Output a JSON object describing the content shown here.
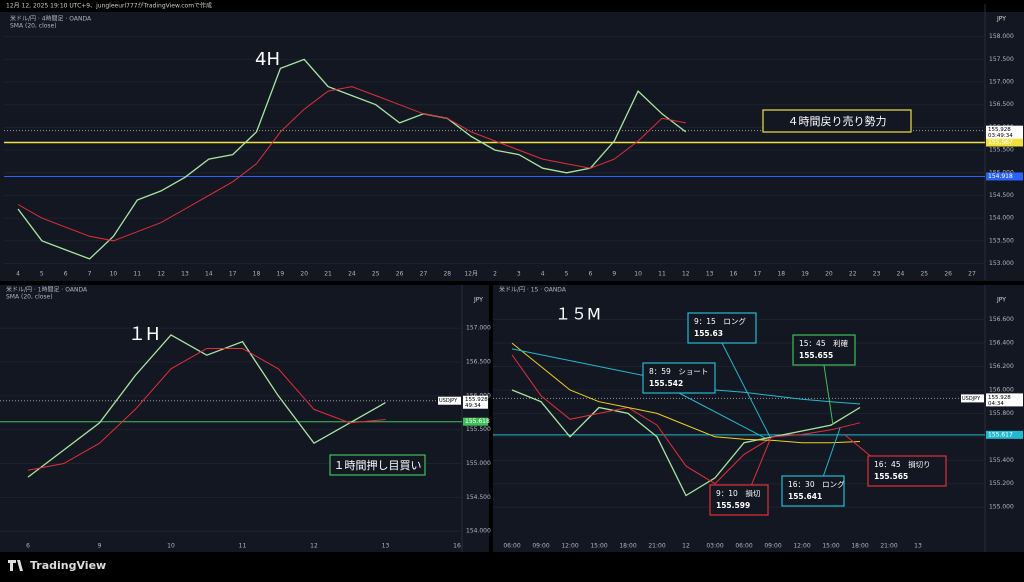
{
  "header": "12月 12, 2025 19:10 UTC+9、jungleeurl777がTradingView.comで作成",
  "footer": "TradingView",
  "chart_data": [
    {
      "type": "line",
      "title": "米ドル/円 · 4時間足 · OANDA",
      "subtitle": "SMA (20, close)",
      "currency": "JPY",
      "label": "4H",
      "categories": [
        "4",
        "5",
        "6",
        "7",
        "10",
        "11",
        "12",
        "13",
        "14",
        "17",
        "18",
        "19",
        "20",
        "21",
        "24",
        "25",
        "26",
        "27",
        "28",
        "12月",
        "2",
        "3",
        "4",
        "5",
        "6",
        "9",
        "10",
        "11",
        "12",
        "13",
        "16",
        "17",
        "18",
        "19",
        "20",
        "22",
        "23",
        "24",
        "25",
        "26",
        "27"
      ],
      "series": [
        {
          "color": "#a8e6a0",
          "values": [
            154.2,
            153.5,
            153.3,
            153.1,
            153.6,
            154.4,
            154.6,
            154.9,
            155.3,
            155.4,
            155.9,
            157.3,
            157.5,
            156.9,
            156.7,
            156.5,
            156.1,
            156.3,
            156.2,
            155.8,
            155.5,
            155.4,
            155.1,
            155.0,
            155.1,
            155.7,
            156.8,
            156.3,
            155.9,
            null,
            null,
            null,
            null,
            null,
            null,
            null,
            null,
            null,
            null,
            null,
            null
          ]
        },
        {
          "color": "#e0303a",
          "values": [
            154.3,
            154.0,
            153.8,
            153.6,
            153.5,
            153.7,
            153.9,
            154.2,
            154.5,
            154.8,
            155.2,
            155.9,
            156.4,
            156.8,
            156.9,
            156.7,
            156.5,
            156.3,
            156.2,
            155.9,
            155.7,
            155.5,
            155.3,
            155.2,
            155.1,
            155.3,
            155.7,
            156.2,
            156.1,
            null,
            null,
            null,
            null,
            null,
            null,
            null,
            null,
            null,
            null,
            null,
            null
          ]
        }
      ],
      "ylim": [
        152.9,
        158.5
      ],
      "yticks": [
        {
          "value": 153,
          "label": "153.000"
        },
        {
          "value": 153.5,
          "label": "153.500"
        },
        {
          "value": 154,
          "label": "154.000"
        },
        {
          "value": 154.5,
          "label": "154.500"
        },
        {
          "value": 155,
          "label": "155.000"
        },
        {
          "value": 155.5,
          "label": "155.500"
        },
        {
          "value": 156,
          "label": "156.000"
        },
        {
          "value": 156.5,
          "label": "156.500"
        },
        {
          "value": 157,
          "label": "157.000"
        },
        {
          "value": 157.5,
          "label": "157.500"
        },
        {
          "value": 158,
          "label": "158.000"
        }
      ],
      "levels": [
        {
          "value": 155.667,
          "color": "#f0e040"
        },
        {
          "value": 154.918,
          "color": "#2962ff"
        }
      ],
      "price": {
        "value": 155.928,
        "timer": "03:49:34"
      },
      "annotations": [
        {
          "text": "４時間戻り売り勢力",
          "color": "#f0e040"
        }
      ]
    },
    {
      "type": "line",
      "title": "米ドル/円 · 1時間足 · OANDA",
      "subtitle": "SMA (20, close)",
      "currency": "JPY",
      "label": "１H",
      "categories": [
        "6",
        null,
        "9",
        null,
        "10",
        null,
        "11",
        null,
        "12",
        null,
        "13",
        null,
        "16"
      ],
      "series": [
        {
          "color": "#a8e6a0",
          "values": [
            154.8,
            155.2,
            155.6,
            156.3,
            156.9,
            156.6,
            156.8,
            156.0,
            155.3,
            155.6,
            155.9,
            null,
            null
          ]
        },
        {
          "color": "#e0303a",
          "values": [
            154.9,
            155.0,
            155.3,
            155.8,
            156.4,
            156.7,
            156.7,
            156.4,
            155.8,
            155.6,
            155.65,
            null,
            null
          ]
        }
      ],
      "ylim": [
        153.87,
        157.49
      ],
      "yticks": [
        {
          "value": 154,
          "label": "154.000"
        },
        {
          "value": 154.5,
          "label": "154.500"
        },
        {
          "value": 155,
          "label": "155.000"
        },
        {
          "value": 155.5,
          "label": "155.500"
        },
        {
          "value": 156,
          "label": "156.000"
        },
        {
          "value": 156.5,
          "label": "156.500"
        },
        {
          "value": 157,
          "label": "157.000"
        }
      ],
      "levels": [
        {
          "value": 155.618,
          "color": "#3fbf5a"
        }
      ],
      "price": {
        "value": 155.928,
        "timer": "49:34",
        "symbol": "USDJPY"
      },
      "annotations": [
        {
          "text": "１時間押し目買い",
          "color": "#3fbf5a"
        }
      ]
    },
    {
      "type": "line",
      "title": "米ドル/円 · 15 · OANDA",
      "currency": "JPY",
      "label": "１５M",
      "categories": [
        "06:00",
        "09:00",
        "12:00",
        "15:00",
        "18:00",
        "21:00",
        "12",
        "03:00",
        "06:00",
        "09:00",
        "12:00",
        "15:00",
        "18:00",
        "21:00",
        "13"
      ],
      "series": [
        {
          "color": "#a8e6a0",
          "values": [
            156.0,
            155.9,
            155.6,
            155.85,
            155.8,
            155.6,
            155.1,
            155.25,
            155.55,
            155.6,
            155.65,
            155.7,
            155.85,
            null,
            null
          ]
        },
        {
          "color": "#e0303a",
          "values": [
            156.3,
            155.95,
            155.75,
            155.8,
            155.85,
            155.7,
            155.35,
            155.2,
            155.45,
            155.6,
            155.62,
            155.66,
            155.72,
            null,
            null
          ]
        },
        {
          "color": "#f0d020",
          "values": [
            156.4,
            156.2,
            156.0,
            155.9,
            155.85,
            155.8,
            155.7,
            155.6,
            155.58,
            155.57,
            155.55,
            155.55,
            155.56,
            null,
            null
          ]
        },
        {
          "color": "#22b8cf",
          "values": [
            156.35,
            156.3,
            156.25,
            156.2,
            156.15,
            156.1,
            156.05,
            156.0,
            155.98,
            155.95,
            155.92,
            155.9,
            155.88,
            null,
            null
          ]
        }
      ],
      "ylim": [
        154.72,
        156.81
      ],
      "yticks": [
        {
          "value": 155,
          "label": "155.000"
        },
        {
          "value": 155.2,
          "label": "155.200"
        },
        {
          "value": 155.4,
          "label": "155.400"
        },
        {
          "value": 155.6,
          "label": "155.600"
        },
        {
          "value": 155.8,
          "label": "155.800"
        },
        {
          "value": 156,
          "label": "156.000"
        },
        {
          "value": 156.2,
          "label": "156.200"
        },
        {
          "value": 156.4,
          "label": "156.400"
        },
        {
          "value": 156.6,
          "label": "156.600"
        }
      ],
      "levels": [
        {
          "value": 155.617,
          "color": "#22b8cf"
        }
      ],
      "price": {
        "value": 155.928,
        "timer": "04:34",
        "symbol": "USDJPY"
      },
      "annotations": [
        {
          "text": "9：15　ロング",
          "value": 155.63,
          "color": "#22b8cf"
        },
        {
          "text": "8：59　ショート",
          "value": 155.542,
          "color": "#22b8cf"
        },
        {
          "text": "15：45　利確",
          "value": 155.655,
          "color": "#3fbf5a"
        },
        {
          "text": "9：10　損切",
          "value": 155.599,
          "color": "#e0303a"
        },
        {
          "text": "16：30　ロング",
          "value": 155.641,
          "color": "#22b8cf"
        },
        {
          "text": "16：45　損切り",
          "value": 155.565,
          "color": "#e0303a"
        }
      ]
    }
  ]
}
